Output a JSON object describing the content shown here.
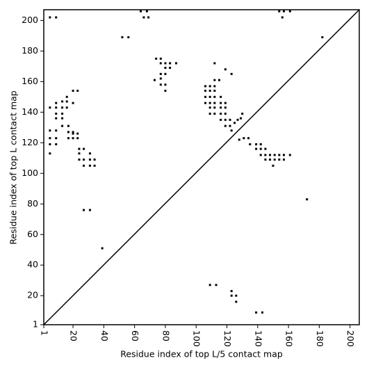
{
  "chart_data": {
    "type": "scatter",
    "xlabel": "Residue index of top L/5 contact map",
    "ylabel": "Residue index of top L contact map",
    "xlim": [
      1,
      206
    ],
    "ylim": [
      1,
      207
    ],
    "xticks": [
      1,
      20,
      40,
      60,
      80,
      100,
      120,
      140,
      160,
      180,
      200
    ],
    "yticks": [
      1,
      20,
      40,
      60,
      80,
      100,
      120,
      140,
      160,
      180,
      200
    ],
    "diagonal": true,
    "series": [
      {
        "color": "#000000",
        "x": [
          5,
          9,
          52,
          56,
          64,
          68,
          66,
          69,
          74,
          77,
          77,
          80,
          83,
          87,
          80,
          83,
          77,
          80,
          77,
          73,
          77,
          80,
          80,
          112,
          119,
          123,
          106,
          109,
          112,
          106,
          109,
          112,
          106,
          109,
          112,
          116,
          106,
          109,
          112,
          116,
          119,
          109,
          112,
          116,
          119,
          109,
          112,
          116,
          119,
          115,
          112,
          116,
          119,
          122,
          119,
          122,
          123,
          125,
          127,
          129,
          130,
          128,
          131,
          134,
          135,
          139,
          142,
          139,
          142,
          145,
          142,
          145,
          148,
          151,
          154,
          157,
          161,
          145,
          148,
          151,
          154,
          157,
          150,
          154,
          157,
          161,
          156,
          182,
          172,
          5,
          9,
          5,
          9,
          5,
          9,
          5,
          5,
          9,
          13,
          9,
          13,
          9,
          13,
          9,
          13,
          16,
          16,
          20,
          20,
          23,
          13,
          17,
          17,
          20,
          17,
          20,
          23,
          20,
          23,
          24,
          24,
          24,
          27,
          27,
          27,
          31,
          31,
          31,
          34,
          34,
          16,
          27,
          31,
          39
        ],
        "y": [
          202,
          202,
          189,
          189,
          206,
          206,
          202,
          202,
          175,
          175,
          172,
          172,
          172,
          172,
          169,
          169,
          165,
          165,
          162,
          161,
          158,
          158,
          154,
          172,
          168,
          165,
          157,
          157,
          157,
          154,
          154,
          154,
          150,
          150,
          150,
          150,
          146,
          146,
          146,
          146,
          146,
          143,
          143,
          143,
          143,
          139,
          139,
          139,
          139,
          161,
          161,
          135,
          135,
          135,
          131,
          131,
          128,
          133,
          135,
          136,
          139,
          122,
          123,
          123,
          119,
          119,
          119,
          116,
          116,
          116,
          112,
          112,
          112,
          112,
          112,
          112,
          112,
          109,
          109,
          109,
          109,
          109,
          105,
          206,
          206,
          206,
          202,
          189,
          83,
          128,
          128,
          123,
          123,
          119,
          119,
          113,
          143,
          143,
          143,
          146,
          147,
          139,
          139,
          136,
          136,
          150,
          147,
          146,
          154,
          154,
          131,
          131,
          127,
          127,
          123,
          123,
          123,
          126,
          126,
          116,
          113,
          109,
          116,
          109,
          105,
          105,
          109,
          113,
          109,
          105,
          143,
          76,
          76,
          51
        ]
      },
      {
        "color": "#000000",
        "x": [
          109,
          113,
          123,
          123,
          126,
          126,
          139,
          143
        ],
        "y": [
          27,
          27,
          23,
          20,
          20,
          16,
          9,
          9
        ]
      }
    ]
  }
}
